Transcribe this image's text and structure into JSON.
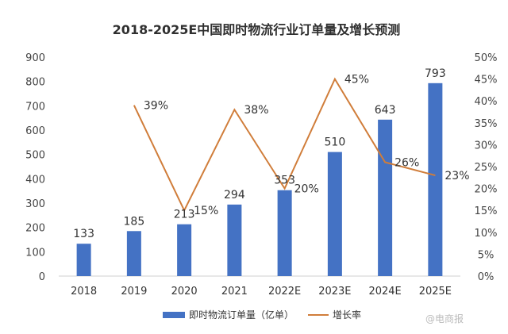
{
  "chart_data": {
    "type": "bar",
    "title": "2018-2025E中国即时物流行业订单量及增长预测",
    "categories": [
      "2018",
      "2019",
      "2020",
      "2021",
      "2022E",
      "2023E",
      "2024E",
      "2025E"
    ],
    "series": [
      {
        "name": "即时物流订单量（亿单）",
        "type": "bar",
        "axis": "left",
        "values": [
          133,
          185,
          213,
          294,
          353,
          510,
          643,
          793
        ],
        "value_labels": [
          "133",
          "185",
          "213",
          "294",
          "353",
          "510",
          "643",
          "793"
        ],
        "color": "#4472c4"
      },
      {
        "name": "增长率",
        "type": "line",
        "axis": "right",
        "values": [
          null,
          39,
          15,
          38,
          20,
          45,
          26,
          23
        ],
        "value_labels": [
          "",
          "39%",
          "15%",
          "38%",
          "20%",
          "45%",
          "26%",
          "23%"
        ],
        "color": "#d07d3a"
      }
    ],
    "left_axis": {
      "ylim": [
        0,
        900
      ],
      "ticks": [
        "0",
        "100",
        "200",
        "300",
        "400",
        "500",
        "600",
        "700",
        "800",
        "900"
      ]
    },
    "right_axis": {
      "ylim": [
        0,
        50
      ],
      "ticks": [
        "0%",
        "5%",
        "10%",
        "15%",
        "20%",
        "25%",
        "30%",
        "35%",
        "40%",
        "45%",
        "50%"
      ]
    },
    "grid": false,
    "legend_position": "bottom"
  },
  "watermark": "@电商报"
}
